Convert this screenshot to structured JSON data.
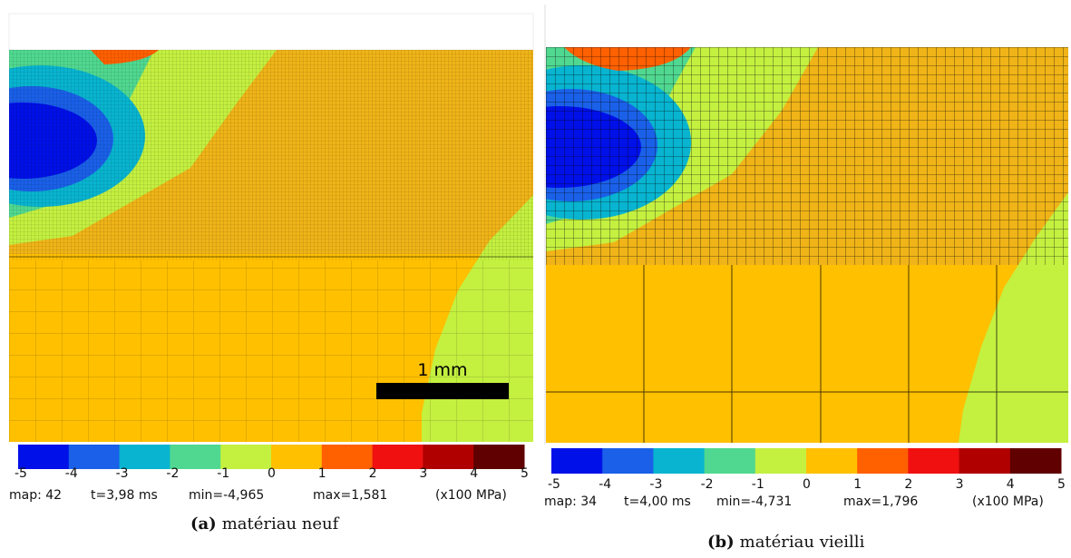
{
  "panels": [
    {
      "scale_bar": "1 mm",
      "colorbar": {
        "colors": [
          "#0010e8",
          "#1a60e8",
          "#08b4d0",
          "#50d890",
          "#c4f040",
          "#ffc000",
          "#ff6000",
          "#f01010",
          "#b00000",
          "#600000"
        ],
        "ticks": [
          -5,
          -4,
          -3,
          -2,
          -1,
          0,
          1,
          2,
          3,
          4,
          5
        ]
      },
      "info": {
        "map": "map: 42",
        "time": "t=3,98 ms",
        "min": "min=-4,965",
        "max": "max=1,581",
        "unit": "(x100 MPa)"
      },
      "caption": {
        "label": "(a)",
        "text": "matériau neuf"
      }
    },
    {
      "colorbar": {
        "colors": [
          "#0010e8",
          "#1a60e8",
          "#08b4d0",
          "#50d890",
          "#c4f040",
          "#ffc000",
          "#ff6000",
          "#f01010",
          "#b00000",
          "#600000"
        ],
        "ticks": [
          -5,
          -4,
          -3,
          -2,
          -1,
          0,
          1,
          2,
          3,
          4,
          5
        ]
      },
      "info": {
        "map": "map: 34",
        "time": "t=4,00 ms",
        "min": "min=-4,731",
        "max": "max=1,796",
        "unit": "(x100 MPa)"
      },
      "caption": {
        "label": "(b)",
        "text": "matériau vieilli"
      }
    }
  ]
}
